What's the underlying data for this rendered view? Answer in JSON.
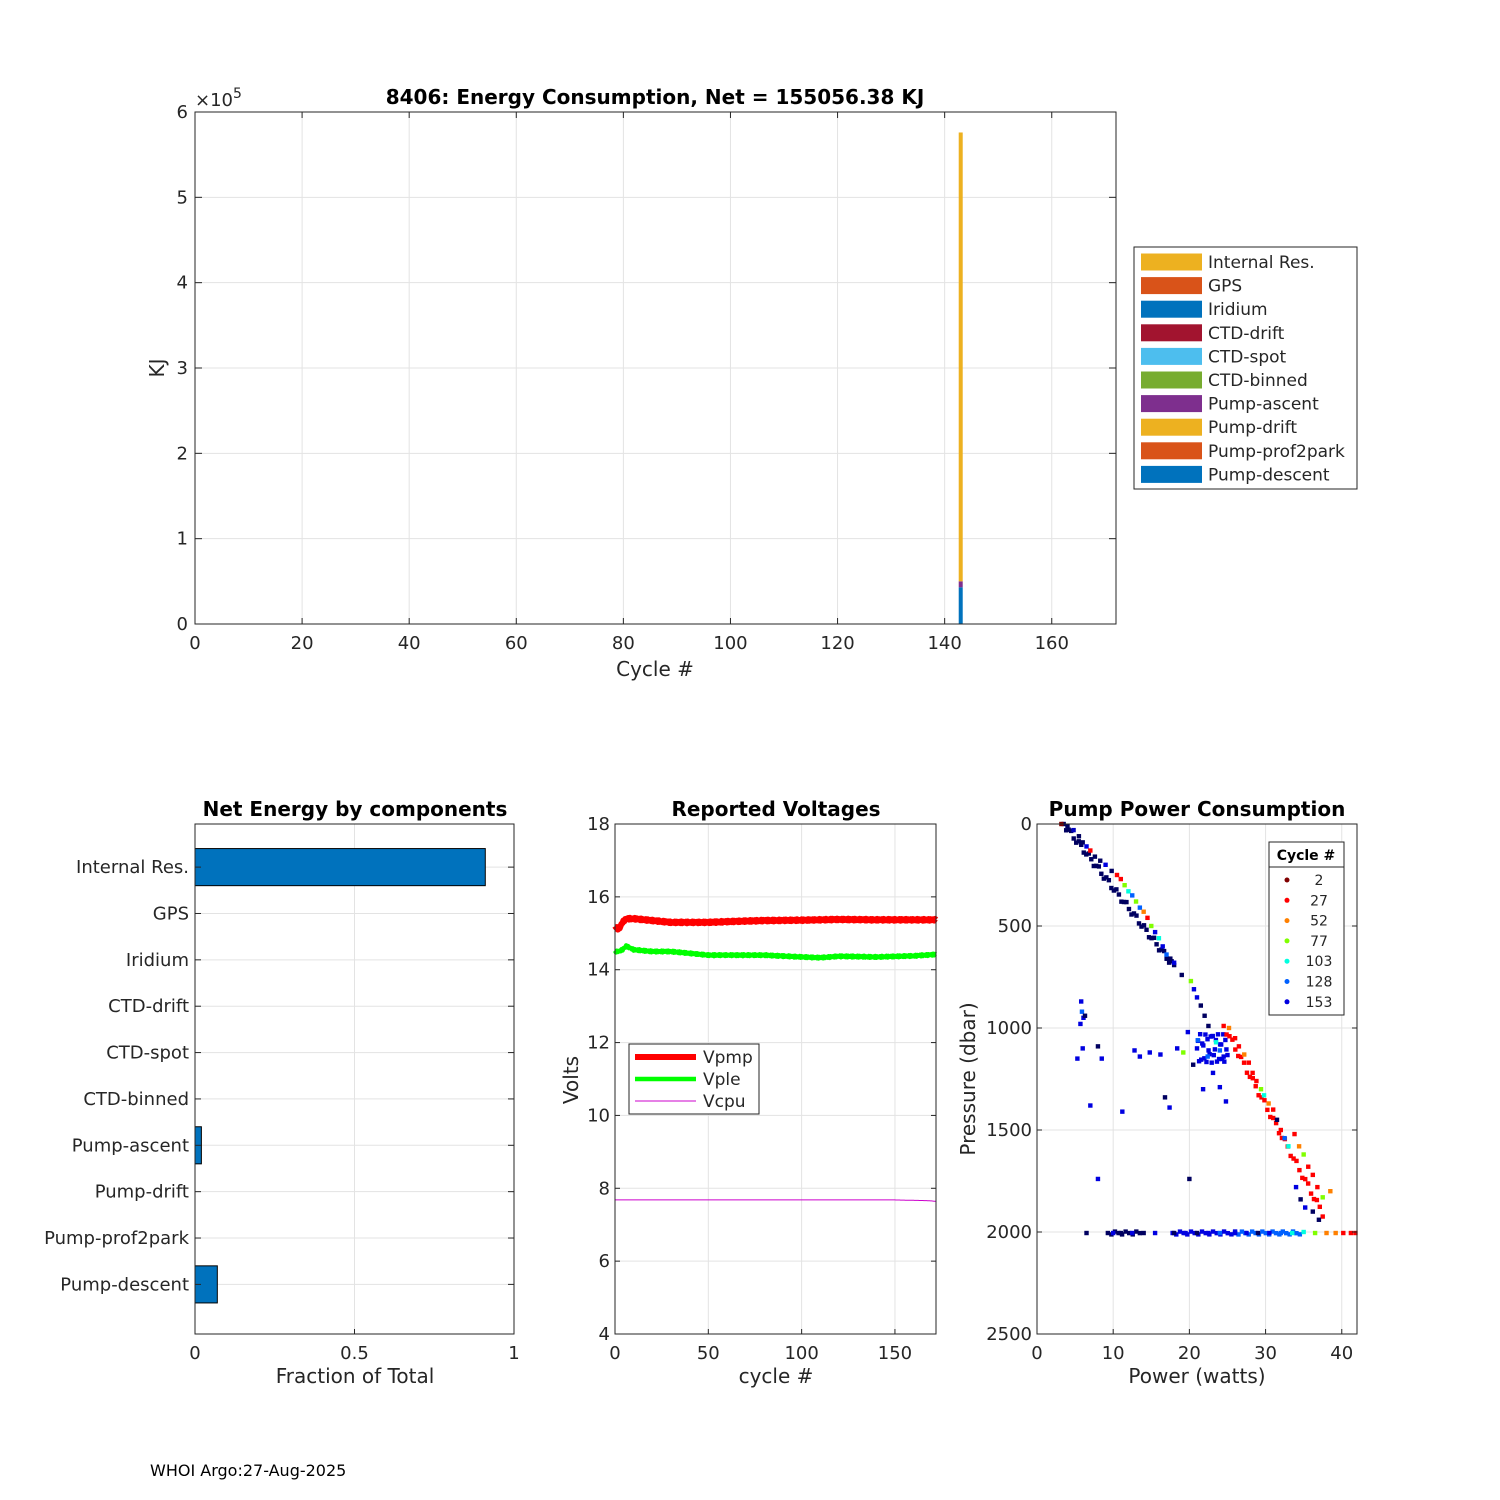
{
  "footer": "WHOI Argo:27-Aug-2025",
  "chart_data": [
    {
      "type": "bar",
      "stacked": true,
      "title": "8406: Energy Consumption,  Net = 155056.38 KJ",
      "xlabel": "Cycle #",
      "ylabel": "KJ",
      "xlim": [
        0,
        172
      ],
      "ylim": [
        0,
        600000
      ],
      "x_ticks": [
        "0",
        "20",
        "40",
        "60",
        "80",
        "100",
        "120",
        "140",
        "160"
      ],
      "x_tick_values": [
        0,
        20,
        40,
        60,
        80,
        100,
        120,
        140,
        160
      ],
      "y_ticks": [
        "0",
        "1",
        "2",
        "3",
        "4",
        "5",
        "6"
      ],
      "y_tick_values": [
        0,
        100000,
        200000,
        300000,
        400000,
        500000,
        600000
      ],
      "y_exponent_label": "×10",
      "y_exponent_power": "5",
      "grid": true,
      "legend_position": "right",
      "bar_cycle": 143,
      "series": [
        {
          "name": "Internal Res.",
          "color": "#EDB120",
          "value": 526000
        },
        {
          "name": "GPS",
          "color": "#D95319",
          "value": 0
        },
        {
          "name": "Iridium",
          "color": "#0072BD",
          "value": 0
        },
        {
          "name": "CTD-drift",
          "color": "#A2142F",
          "value": 0
        },
        {
          "name": "CTD-spot",
          "color": "#4DBEEE",
          "value": 0
        },
        {
          "name": "CTD-binned",
          "color": "#77AC30",
          "value": 0
        },
        {
          "name": "Pump-ascent",
          "color": "#7E2F8E",
          "value": 7000
        },
        {
          "name": "Pump-drift",
          "color": "#EDB120",
          "value": 0
        },
        {
          "name": "Pump-prof2park",
          "color": "#D95319",
          "value": 0
        },
        {
          "name": "Pump-descent",
          "color": "#0072BD",
          "value": 43000
        }
      ]
    },
    {
      "type": "bar",
      "orientation": "horizontal",
      "title": "Net Energy by components",
      "xlabel": "Fraction of Total",
      "xlim": [
        0,
        1
      ],
      "x_ticks": [
        "0",
        "0.5",
        "1"
      ],
      "x_tick_values": [
        0,
        0.5,
        1
      ],
      "grid": true,
      "bar_color": "#0072BD",
      "categories": [
        "Internal Res.",
        "GPS",
        "Iridium",
        "CTD-drift",
        "CTD-spot",
        "CTD-binned",
        "Pump-ascent",
        "Pump-drift",
        "Pump-prof2park",
        "Pump-descent"
      ],
      "values": [
        0.91,
        0,
        0,
        0,
        0,
        0,
        0.02,
        0,
        0,
        0.07
      ]
    },
    {
      "type": "line",
      "title": "Reported Voltages",
      "xlabel": "cycle #",
      "ylabel": "Volts",
      "xlim": [
        0,
        172
      ],
      "ylim": [
        4,
        18
      ],
      "x_ticks": [
        "0",
        "50",
        "100",
        "150"
      ],
      "x_tick_values": [
        0,
        50,
        100,
        150
      ],
      "y_ticks": [
        "4",
        "6",
        "8",
        "10",
        "12",
        "14",
        "16",
        "18"
      ],
      "y_tick_values": [
        4,
        6,
        8,
        10,
        12,
        14,
        16,
        18
      ],
      "grid": true,
      "legend_position": "middle-left",
      "series": [
        {
          "name": "Vpmp",
          "color": "#FF0000",
          "x": [
            0,
            2,
            4,
            6,
            10,
            20,
            30,
            40,
            50,
            60,
            80,
            100,
            120,
            140,
            160,
            172
          ],
          "y": [
            15.2,
            15.1,
            15.3,
            15.4,
            15.4,
            15.35,
            15.3,
            15.3,
            15.3,
            15.32,
            15.35,
            15.36,
            15.38,
            15.37,
            15.37,
            15.37
          ]
        },
        {
          "name": "Vple",
          "color": "#00FF00",
          "x": [
            0,
            2,
            4,
            6,
            10,
            20,
            30,
            40,
            50,
            60,
            80,
            100,
            110,
            120,
            140,
            160,
            172
          ],
          "y": [
            14.5,
            14.5,
            14.55,
            14.65,
            14.55,
            14.5,
            14.5,
            14.45,
            14.4,
            14.4,
            14.4,
            14.35,
            14.33,
            14.37,
            14.35,
            14.38,
            14.42
          ]
        },
        {
          "name": "Vcpu",
          "color": "#CC00CC",
          "x": [
            0,
            50,
            100,
            150,
            168,
            172
          ],
          "y": [
            7.68,
            7.68,
            7.68,
            7.68,
            7.66,
            7.64
          ]
        }
      ]
    },
    {
      "type": "scatter",
      "title": "Pump Power Consumption",
      "xlabel": "Power (watts)",
      "ylabel": "Pressure (dbar)",
      "xlim": [
        0,
        42
      ],
      "ylim": [
        0,
        2500
      ],
      "y_reversed": true,
      "x_ticks": [
        "0",
        "10",
        "20",
        "30",
        "40"
      ],
      "x_tick_values": [
        0,
        10,
        20,
        30,
        40
      ],
      "y_ticks": [
        "0",
        "500",
        "1000",
        "1500",
        "2000",
        "2500"
      ],
      "y_tick_values": [
        0,
        500,
        1000,
        1500,
        2000,
        2500
      ],
      "grid": true,
      "legend_title": "Cycle #",
      "legend_position": "top-right",
      "legend_entries": [
        {
          "label": "2",
          "color": "#800000"
        },
        {
          "label": "27",
          "color": "#FF0000"
        },
        {
          "label": "52",
          "color": "#FF8000"
        },
        {
          "label": "77",
          "color": "#80FF00"
        },
        {
          "label": "103",
          "color": "#00FFE0"
        },
        {
          "label": "128",
          "color": "#0060FF"
        },
        {
          "label": "153",
          "color": "#0000E0"
        }
      ],
      "points": [
        {
          "x": 3.2,
          "y": 0,
          "c": "#800000"
        },
        {
          "x": 4.0,
          "y": 10,
          "c": "#000060"
        },
        {
          "x": 4.8,
          "y": 30,
          "c": "#0000C0"
        },
        {
          "x": 5.5,
          "y": 60,
          "c": "#000060"
        },
        {
          "x": 6.0,
          "y": 90,
          "c": "#000060"
        },
        {
          "x": 6.5,
          "y": 110,
          "c": "#0000E0"
        },
        {
          "x": 7.0,
          "y": 130,
          "c": "#FF0000"
        },
        {
          "x": 7.6,
          "y": 160,
          "c": "#000060"
        },
        {
          "x": 8.3,
          "y": 180,
          "c": "#000060"
        },
        {
          "x": 9.0,
          "y": 200,
          "c": "#0000E0"
        },
        {
          "x": 9.8,
          "y": 230,
          "c": "#000060"
        },
        {
          "x": 10.5,
          "y": 250,
          "c": "#FF0000"
        },
        {
          "x": 11.0,
          "y": 270,
          "c": "#FF0000"
        },
        {
          "x": 11.5,
          "y": 300,
          "c": "#80FF00"
        },
        {
          "x": 12.0,
          "y": 330,
          "c": "#00FFE0"
        },
        {
          "x": 12.5,
          "y": 350,
          "c": "#0060FF"
        },
        {
          "x": 13.0,
          "y": 380,
          "c": "#80FF00"
        },
        {
          "x": 13.5,
          "y": 410,
          "c": "#0060FF"
        },
        {
          "x": 14.0,
          "y": 430,
          "c": "#FF8000"
        },
        {
          "x": 14.5,
          "y": 460,
          "c": "#FF0000"
        },
        {
          "x": 15.0,
          "y": 500,
          "c": "#80FF00"
        },
        {
          "x": 15.5,
          "y": 530,
          "c": "#0000E0"
        },
        {
          "x": 16.0,
          "y": 560,
          "c": "#00FFE0"
        },
        {
          "x": 16.5,
          "y": 600,
          "c": "#0000E0"
        },
        {
          "x": 17.0,
          "y": 640,
          "c": "#0060FF"
        },
        {
          "x": 17.5,
          "y": 660,
          "c": "#000060"
        },
        {
          "x": 18.0,
          "y": 680,
          "c": "#0000E0"
        },
        {
          "x": 19.0,
          "y": 740,
          "c": "#000060"
        },
        {
          "x": 20.2,
          "y": 770,
          "c": "#80FF00"
        },
        {
          "x": 20.6,
          "y": 810,
          "c": "#0000E0"
        },
        {
          "x": 21.0,
          "y": 850,
          "c": "#0000E0"
        },
        {
          "x": 21.5,
          "y": 890,
          "c": "#000060"
        },
        {
          "x": 22.0,
          "y": 940,
          "c": "#000060"
        },
        {
          "x": 22.5,
          "y": 990,
          "c": "#000060"
        },
        {
          "x": 23.0,
          "y": 1040,
          "c": "#0000E0"
        },
        {
          "x": 23.5,
          "y": 1070,
          "c": "#00FFE0"
        },
        {
          "x": 24.0,
          "y": 1110,
          "c": "#0060FF"
        },
        {
          "x": 24.5,
          "y": 1140,
          "c": "#0000E0"
        },
        {
          "x": 25.2,
          "y": 1000,
          "c": "#FF8000"
        },
        {
          "x": 26.0,
          "y": 1050,
          "c": "#FF0000"
        },
        {
          "x": 26.5,
          "y": 1090,
          "c": "#FF0000"
        },
        {
          "x": 27.2,
          "y": 1130,
          "c": "#FF8000"
        },
        {
          "x": 27.8,
          "y": 1170,
          "c": "#FF0000"
        },
        {
          "x": 28.3,
          "y": 1220,
          "c": "#FF0000"
        },
        {
          "x": 28.8,
          "y": 1260,
          "c": "#FF0000"
        },
        {
          "x": 29.4,
          "y": 1300,
          "c": "#80FF00"
        },
        {
          "x": 29.8,
          "y": 1330,
          "c": "#00FFE0"
        },
        {
          "x": 30.4,
          "y": 1370,
          "c": "#FF8000"
        },
        {
          "x": 31.0,
          "y": 1400,
          "c": "#FF0000"
        },
        {
          "x": 31.5,
          "y": 1450,
          "c": "#000060"
        },
        {
          "x": 32.0,
          "y": 1500,
          "c": "#FF0000"
        },
        {
          "x": 32.5,
          "y": 1540,
          "c": "#0060FF"
        },
        {
          "x": 33.0,
          "y": 1580,
          "c": "#00FFE0"
        },
        {
          "x": 33.8,
          "y": 1520,
          "c": "#FF0000"
        },
        {
          "x": 34.4,
          "y": 1580,
          "c": "#FF8000"
        },
        {
          "x": 35.0,
          "y": 1620,
          "c": "#80FF00"
        },
        {
          "x": 35.6,
          "y": 1680,
          "c": "#FF0000"
        },
        {
          "x": 36.2,
          "y": 1720,
          "c": "#FF0000"
        },
        {
          "x": 36.8,
          "y": 1780,
          "c": "#FF0000"
        },
        {
          "x": 37.5,
          "y": 1830,
          "c": "#80FF00"
        },
        {
          "x": 38.5,
          "y": 1800,
          "c": "#FF8000"
        },
        {
          "x": 34.0,
          "y": 1780,
          "c": "#0000E0"
        },
        {
          "x": 34.6,
          "y": 1840,
          "c": "#000060"
        },
        {
          "x": 35.2,
          "y": 1880,
          "c": "#0000E0"
        },
        {
          "x": 36.2,
          "y": 1900,
          "c": "#000060"
        },
        {
          "x": 37.0,
          "y": 1940,
          "c": "#000060"
        },
        {
          "x": 5.8,
          "y": 870,
          "c": "#0000E0"
        },
        {
          "x": 5.9,
          "y": 920,
          "c": "#0060FF"
        },
        {
          "x": 6.1,
          "y": 950,
          "c": "#0000E0"
        },
        {
          "x": 5.7,
          "y": 980,
          "c": "#0000E0"
        },
        {
          "x": 6.3,
          "y": 940,
          "c": "#000060"
        },
        {
          "x": 5.3,
          "y": 1150,
          "c": "#0000E0"
        },
        {
          "x": 6.0,
          "y": 1100,
          "c": "#0000E0"
        },
        {
          "x": 7.0,
          "y": 1380,
          "c": "#0000E0"
        },
        {
          "x": 8.0,
          "y": 1090,
          "c": "#000060"
        },
        {
          "x": 8.5,
          "y": 1150,
          "c": "#0000E0"
        },
        {
          "x": 11.2,
          "y": 1410,
          "c": "#0000E0"
        },
        {
          "x": 12.8,
          "y": 1110,
          "c": "#0000E0"
        },
        {
          "x": 13.5,
          "y": 1140,
          "c": "#0000E0"
        },
        {
          "x": 14.8,
          "y": 1120,
          "c": "#0000E0"
        },
        {
          "x": 16.2,
          "y": 1130,
          "c": "#0000E0"
        },
        {
          "x": 16.8,
          "y": 1340,
          "c": "#000060"
        },
        {
          "x": 17.4,
          "y": 1390,
          "c": "#0000E0"
        },
        {
          "x": 18.4,
          "y": 1100,
          "c": "#0000E0"
        },
        {
          "x": 19.2,
          "y": 1120,
          "c": "#80FF00"
        },
        {
          "x": 19.8,
          "y": 1020,
          "c": "#0000E0"
        },
        {
          "x": 20.5,
          "y": 1180,
          "c": "#000060"
        },
        {
          "x": 21.1,
          "y": 1060,
          "c": "#0060FF"
        },
        {
          "x": 21.8,
          "y": 1300,
          "c": "#0000E0"
        },
        {
          "x": 22.4,
          "y": 1140,
          "c": "#0060FF"
        },
        {
          "x": 23.1,
          "y": 1220,
          "c": "#0000E0"
        },
        {
          "x": 24.0,
          "y": 1290,
          "c": "#0000E0"
        },
        {
          "x": 24.8,
          "y": 1360,
          "c": "#0000E0"
        },
        {
          "x": 20.0,
          "y": 1740,
          "c": "#000060"
        },
        {
          "x": 8.0,
          "y": 1740,
          "c": "#0000E0"
        },
        {
          "x": 6.5,
          "y": 2005,
          "c": "#000060"
        },
        {
          "x": 10.0,
          "y": 2005,
          "c": "#0000E0"
        },
        {
          "x": 11.0,
          "y": 2005,
          "c": "#000060"
        },
        {
          "x": 12.5,
          "y": 2005,
          "c": "#0000E0"
        },
        {
          "x": 14.0,
          "y": 2005,
          "c": "#000060"
        },
        {
          "x": 15.5,
          "y": 2005,
          "c": "#0000E0"
        },
        {
          "x": 18.0,
          "y": 2005,
          "c": "#000060"
        },
        {
          "x": 19.5,
          "y": 2005,
          "c": "#0000E0"
        },
        {
          "x": 21.0,
          "y": 2005,
          "c": "#000060"
        },
        {
          "x": 22.5,
          "y": 2005,
          "c": "#0000E0"
        },
        {
          "x": 24.0,
          "y": 2005,
          "c": "#0060FF"
        },
        {
          "x": 26.0,
          "y": 2005,
          "c": "#0000E0"
        },
        {
          "x": 27.5,
          "y": 2005,
          "c": "#0000E0"
        },
        {
          "x": 29.0,
          "y": 2005,
          "c": "#000060"
        },
        {
          "x": 30.5,
          "y": 2005,
          "c": "#0000E0"
        },
        {
          "x": 32.0,
          "y": 2005,
          "c": "#0060FF"
        },
        {
          "x": 33.5,
          "y": 2005,
          "c": "#00FFE0"
        },
        {
          "x": 35.0,
          "y": 2000,
          "c": "#00FFE0"
        },
        {
          "x": 36.5,
          "y": 2005,
          "c": "#80FF00"
        },
        {
          "x": 38.0,
          "y": 2005,
          "c": "#FF8000"
        },
        {
          "x": 39.2,
          "y": 2005,
          "c": "#FF8000"
        },
        {
          "x": 40.2,
          "y": 2005,
          "c": "#FF0000"
        },
        {
          "x": 41.2,
          "y": 2005,
          "c": "#FF0000"
        },
        {
          "x": 41.8,
          "y": 2005,
          "c": "#FF0000"
        }
      ],
      "point_bands": [
        {
          "x0": 9.3,
          "x1": 13.5,
          "y": 2005,
          "n": 10,
          "c": "#000060"
        },
        {
          "x0": 17.8,
          "x1": 26.0,
          "y": 2005,
          "n": 18,
          "c": "#0000E0"
        },
        {
          "x0": 26.0,
          "x1": 34.5,
          "y": 2005,
          "n": 20,
          "c": "#0060FF"
        },
        {
          "x0": 21.0,
          "x1": 25.0,
          "y0": 1030,
          "y1": 1170,
          "n": 30,
          "c": "#0000E0"
        },
        {
          "x0": 3.5,
          "x1": 18.0,
          "y0": 0,
          "y1": 700,
          "n": 45,
          "c": "#000060",
          "diag": true
        },
        {
          "x0": 24.5,
          "x1": 37.5,
          "y0": 990,
          "y1": 1910,
          "n": 35,
          "c": "#FF0000",
          "diag": true
        }
      ]
    }
  ]
}
